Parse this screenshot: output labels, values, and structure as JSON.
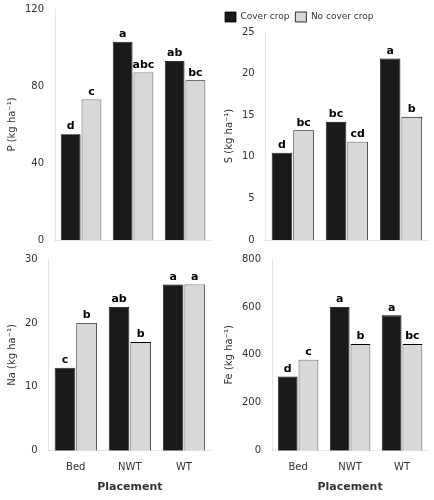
{
  "chart_data": [
    {
      "type": "bar",
      "y_label": "P (kg ha⁻¹)",
      "categories": [
        "Bed",
        "NWT",
        "WT"
      ],
      "series": [
        {
          "name": "Cover crop",
          "color": "#1a1a1a",
          "values": [
            55,
            103,
            93
          ],
          "annotations": [
            "d",
            "a",
            "ab"
          ]
        },
        {
          "name": "No cover crop",
          "color": "#d8d8d8",
          "values": [
            73,
            87,
            83
          ],
          "annotations": [
            "c",
            "abc",
            "bc"
          ]
        }
      ],
      "ylim": [
        0,
        120
      ],
      "yticks": [
        0,
        40,
        80,
        120
      ],
      "grid": false,
      "tick_labels": "y"
    },
    {
      "type": "bar",
      "y_label": "S (kg ha⁻¹)",
      "categories": [
        "Bed",
        "NWT",
        "WT"
      ],
      "series": [
        {
          "name": "Cover crop",
          "color": "#1a1a1a",
          "values": [
            10.5,
            14.2,
            21.8
          ],
          "annotations": [
            "d",
            "bc",
            "a"
          ]
        },
        {
          "name": "No cover crop",
          "color": "#d8d8d8",
          "values": [
            13.2,
            11.8,
            14.8
          ],
          "annotations": [
            "bc",
            "cd",
            "b"
          ]
        }
      ],
      "ylim": [
        0,
        25
      ],
      "yticks": [
        0,
        5,
        10,
        15,
        20,
        25
      ],
      "grid": false,
      "tick_labels": "y",
      "legend": "upper left"
    },
    {
      "type": "bar",
      "x_label": "Placement",
      "y_label": "Na (kg ha⁻¹)",
      "categories": [
        "Bed",
        "NWT",
        "WT"
      ],
      "series": [
        {
          "name": "Cover crop",
          "color": "#1a1a1a",
          "values": [
            13,
            22.5,
            26
          ],
          "annotations": [
            "c",
            "ab",
            "a"
          ]
        },
        {
          "name": "No cover crop",
          "color": "#d8d8d8",
          "values": [
            20,
            17,
            26
          ],
          "annotations": [
            "b",
            "b",
            "a"
          ]
        }
      ],
      "ylim": [
        0,
        30
      ],
      "yticks": [
        0,
        10,
        20,
        30
      ],
      "grid": false
    },
    {
      "type": "bar",
      "x_label": "Placement",
      "y_label": "Fe (kg ha⁻¹)",
      "categories": [
        "Bed",
        "NWT",
        "WT"
      ],
      "series": [
        {
          "name": "Cover crop",
          "color": "#1a1a1a",
          "values": [
            310,
            600,
            565
          ],
          "annotations": [
            "d",
            "a",
            "a"
          ]
        },
        {
          "name": "No cover crop",
          "color": "#d8d8d8",
          "values": [
            380,
            445,
            445
          ],
          "annotations": [
            "c",
            "b",
            "bc"
          ]
        }
      ],
      "ylim": [
        0,
        800
      ],
      "yticks": [
        0,
        200,
        400,
        600,
        800
      ],
      "grid": false
    }
  ]
}
